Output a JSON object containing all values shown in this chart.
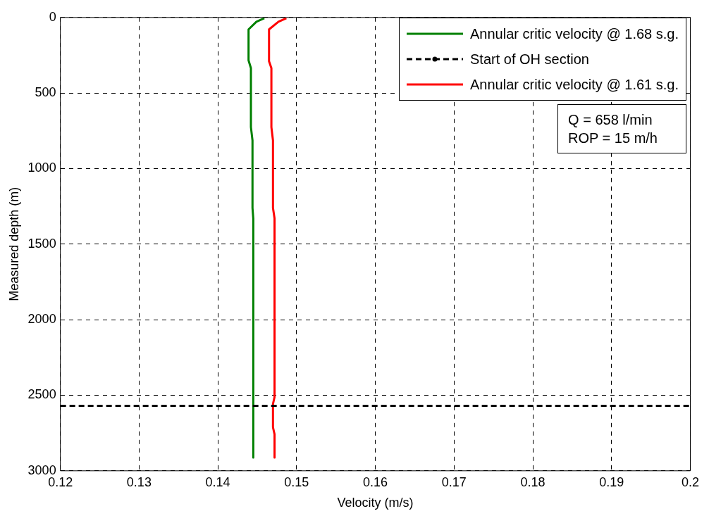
{
  "chart_data": {
    "type": "line",
    "xlabel": "Velocity (m/s)",
    "ylabel": "Measured depth (m)",
    "xlim": [
      0.12,
      0.2
    ],
    "xticks": [
      0.12,
      0.13,
      0.14,
      0.15,
      0.16,
      0.17,
      0.18,
      0.19,
      0.2
    ],
    "ylim": [
      3000,
      0
    ],
    "yticks": [
      0,
      500,
      1000,
      1500,
      2000,
      2500,
      3000
    ],
    "grid": true,
    "legend": "top right",
    "line_style": "solid",
    "marker": "none",
    "series": [
      {
        "name": "Annular critic velocity @ 1.68 s.g.",
        "color": "#008000",
        "x": [
          0.1459,
          0.1449,
          0.1439,
          0.1439,
          0.1442,
          0.1442,
          0.1444,
          0.1444,
          0.1445,
          0.1445
        ],
        "values": [
          5,
          28,
          79,
          284,
          335,
          726,
          814,
          1260,
          1330,
          2912
        ]
      },
      {
        "name": "Annular critic velocity @ 1.61 s.g.",
        "color": "#ff0000",
        "x": [
          0.1487,
          0.1477,
          0.1465,
          0.1465,
          0.1468,
          0.1468,
          0.147,
          0.147,
          0.1472,
          0.1472,
          0.147,
          0.147,
          0.1472,
          0.1472
        ],
        "values": [
          5,
          28,
          79,
          290,
          335,
          726,
          814,
          1260,
          1330,
          2512,
          2558,
          2712,
          2758,
          2912
        ]
      }
    ],
    "ref_lines": [
      {
        "axis": "y",
        "value": 2570,
        "label": "Start of OH section",
        "color": "#000000",
        "line_style": "dashed"
      }
    ],
    "annotations": [
      "Q = 658 l/min",
      "ROP = 15 m/h"
    ]
  }
}
